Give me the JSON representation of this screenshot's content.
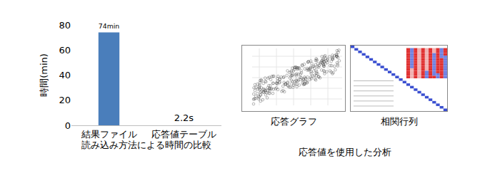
{
  "chart_data": {
    "type": "bar",
    "categories": [
      "結果ファイル",
      "応答値テーブル"
    ],
    "values": [
      74,
      0.0367
    ],
    "value_labels": [
      "74min",
      "2.2s"
    ],
    "color": "#4a7ebb",
    "data_labels": true,
    "x_label": "読み込み方法による時間の比較",
    "y_label": "時間(min)",
    "ylim": [
      0,
      80
    ],
    "yticks": [
      0,
      20,
      40,
      60,
      80
    ],
    "grid": false
  },
  "analysis": {
    "caption": "応答値を使用した分析",
    "images": [
      {
        "label": "応答グラフ"
      },
      {
        "label": "相関行列"
      }
    ]
  }
}
